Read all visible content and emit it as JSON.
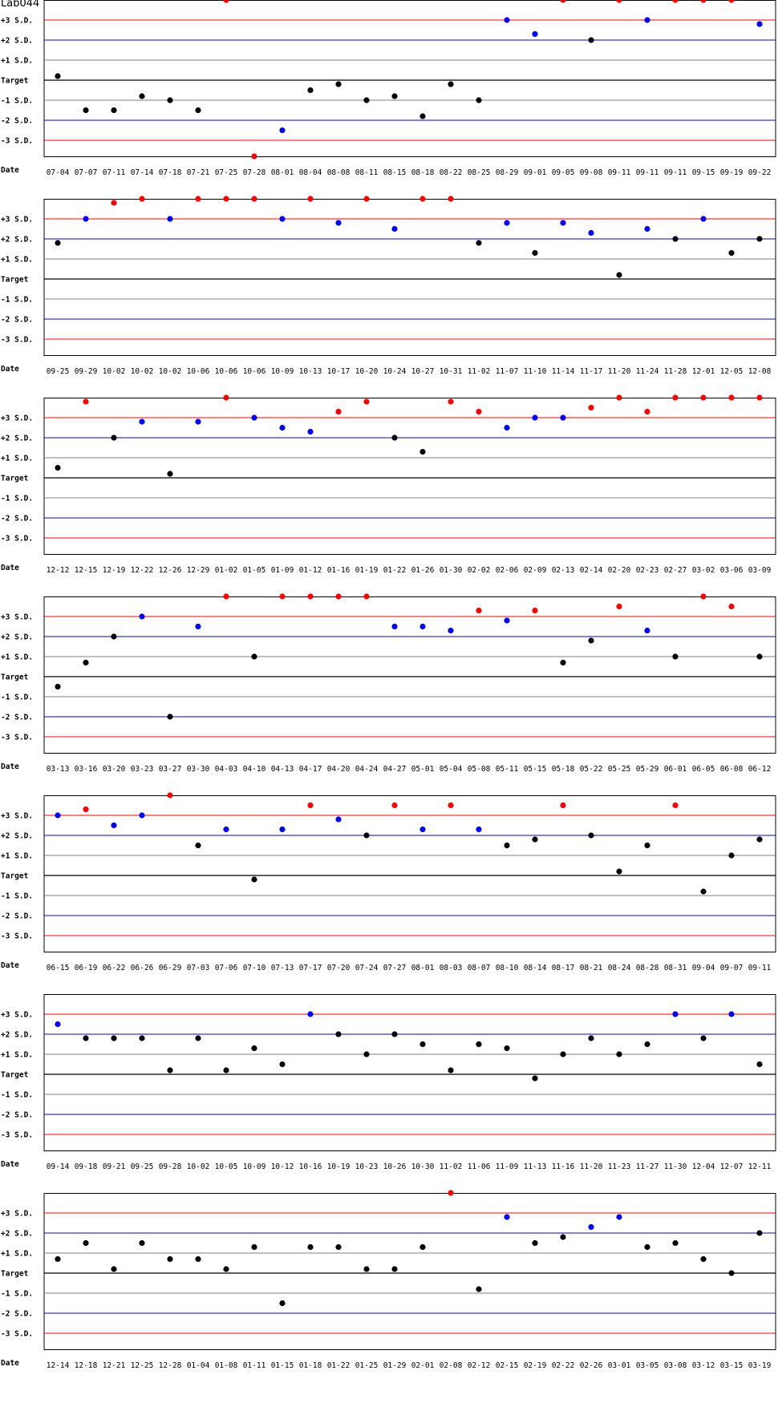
{
  "title": "Lab044",
  "level_labels": [
    "+3 S.D.",
    "+2 S.D.",
    "+1 S.D.",
    "Target",
    "-1 S.D.",
    "-2 S.D.",
    "-3 S.D."
  ],
  "x_axis_label": "Date",
  "colors": {
    "in_control": "#000000",
    "warning": "#0000ff",
    "out_of_control": "#ff0000",
    "target_line": "#000000",
    "sd1_line": "#808080",
    "sd2_line": "#0000ff",
    "sd3_line": "#ff0000"
  },
  "chart_data": [
    {
      "type": "scatter",
      "ylim": [
        -3.6,
        4
      ],
      "grid": true,
      "x": [
        "07-04",
        "07-07",
        "07-11",
        "07-14",
        "07-18",
        "07-21",
        "07-25",
        "07-28",
        "08-01",
        "08-04",
        "08-08",
        "08-11",
        "08-15",
        "08-18",
        "08-22",
        "08-25",
        "08-29",
        "09-01",
        "09-05",
        "09-08",
        "09-11",
        "09-11",
        "09-11",
        "09-15",
        "09-19",
        "09-22"
      ],
      "y": [
        0.2,
        -1.5,
        -1.5,
        -0.8,
        -1.0,
        -1.5,
        4.0,
        -3.8,
        -2.5,
        -0.5,
        -0.2,
        -1.0,
        -0.8,
        -1.8,
        -0.2,
        -1.0,
        3.0,
        2.3,
        4.0,
        2.0,
        4.0,
        3.0,
        4.0,
        4.0,
        4.0,
        2.8
      ]
    },
    {
      "type": "scatter",
      "ylim": [
        -3.6,
        4
      ],
      "grid": true,
      "x": [
        "09-25",
        "09-29",
        "10-02",
        "10-02",
        "10-02",
        "10-06",
        "10-06",
        "10-06",
        "10-09",
        "10-13",
        "10-17",
        "10-20",
        "10-24",
        "10-27",
        "10-31",
        "11-02",
        "11-07",
        "11-10",
        "11-14",
        "11-17",
        "11-20",
        "11-24",
        "11-28",
        "12-01",
        "12-05",
        "12-08"
      ],
      "y": [
        1.8,
        3.0,
        3.8,
        4.0,
        3.0,
        4.0,
        4.0,
        4.0,
        3.0,
        4.0,
        2.8,
        4.0,
        2.5,
        4.0,
        4.0,
        1.8,
        2.8,
        1.3,
        2.8,
        2.3,
        0.2,
        2.5,
        2.0,
        3.0,
        1.3,
        2.0
      ]
    },
    {
      "type": "scatter",
      "ylim": [
        -3.6,
        4
      ],
      "grid": true,
      "x": [
        "12-12",
        "12-15",
        "12-19",
        "12-22",
        "12-26",
        "12-29",
        "01-02",
        "01-05",
        "01-09",
        "01-12",
        "01-16",
        "01-19",
        "01-22",
        "01-26",
        "01-30",
        "02-02",
        "02-06",
        "02-09",
        "02-13",
        "02-14",
        "02-20",
        "02-23",
        "02-27",
        "03-02",
        "03-06",
        "03-09"
      ],
      "y": [
        0.5,
        3.8,
        2.0,
        2.8,
        0.2,
        2.8,
        4.0,
        3.0,
        2.5,
        2.3,
        3.3,
        3.8,
        2.0,
        1.3,
        3.8,
        3.3,
        2.5,
        3.0,
        3.0,
        3.5,
        4.0,
        3.3,
        4.0,
        4.0,
        4.0,
        4.0
      ]
    },
    {
      "type": "scatter",
      "ylim": [
        -3.6,
        4
      ],
      "grid": true,
      "x": [
        "03-13",
        "03-16",
        "03-20",
        "03-23",
        "03-27",
        "03-30",
        "04-03",
        "04-10",
        "04-13",
        "04-17",
        "04-20",
        "04-24",
        "04-27",
        "05-01",
        "05-04",
        "05-08",
        "05-11",
        "05-15",
        "05-18",
        "05-22",
        "05-25",
        "05-29",
        "06-01",
        "06-05",
        "06-08",
        "06-12"
      ],
      "y": [
        -0.5,
        0.7,
        2.0,
        3.0,
        -2.0,
        2.5,
        4.0,
        1.0,
        4.0,
        4.0,
        4.0,
        4.0,
        2.5,
        2.5,
        2.3,
        3.3,
        2.8,
        3.3,
        0.7,
        1.8,
        3.5,
        2.3,
        1.0,
        4.0,
        3.5,
        1.0
      ]
    },
    {
      "type": "scatter",
      "ylim": [
        -3.6,
        4
      ],
      "grid": true,
      "x": [
        "06-15",
        "06-19",
        "06-22",
        "06-26",
        "06-29",
        "07-03",
        "07-06",
        "07-10",
        "07-13",
        "07-17",
        "07-20",
        "07-24",
        "07-27",
        "08-01",
        "08-03",
        "08-07",
        "08-10",
        "08-14",
        "08-17",
        "08-21",
        "08-24",
        "08-28",
        "08-31",
        "09-04",
        "09-07",
        "09-11"
      ],
      "y": [
        3.0,
        3.3,
        2.5,
        3.0,
        4.0,
        1.5,
        2.3,
        -0.2,
        2.3,
        3.5,
        2.8,
        2.0,
        3.5,
        2.3,
        3.5,
        2.3,
        1.5,
        1.8,
        3.5,
        2.0,
        0.2,
        1.5,
        3.5,
        -0.8,
        1.0,
        1.8
      ]
    },
    {
      "type": "scatter",
      "ylim": [
        -3.6,
        4
      ],
      "grid": true,
      "x": [
        "09-14",
        "09-18",
        "09-21",
        "09-25",
        "09-28",
        "10-02",
        "10-05",
        "10-09",
        "10-12",
        "10-16",
        "10-19",
        "10-23",
        "10-26",
        "10-30",
        "11-02",
        "11-06",
        "11-09",
        "11-13",
        "11-16",
        "11-20",
        "11-23",
        "11-27",
        "11-30",
        "12-04",
        "12-07",
        "12-11"
      ],
      "y": [
        2.5,
        1.8,
        1.8,
        1.8,
        0.2,
        1.8,
        0.2,
        1.3,
        0.5,
        3.0,
        2.0,
        1.0,
        2.0,
        1.5,
        0.2,
        1.5,
        1.3,
        -0.2,
        1.0,
        1.8,
        1.0,
        1.5,
        3.0,
        1.8,
        3.0,
        0.5
      ]
    },
    {
      "type": "scatter",
      "ylim": [
        -3.6,
        4
      ],
      "grid": true,
      "x": [
        "12-14",
        "12-18",
        "12-21",
        "12-25",
        "12-28",
        "01-04",
        "01-08",
        "01-11",
        "01-15",
        "01-18",
        "01-22",
        "01-25",
        "01-29",
        "02-01",
        "02-08",
        "02-12",
        "02-15",
        "02-19",
        "02-22",
        "02-26",
        "03-01",
        "03-05",
        "03-08",
        "03-12",
        "03-15",
        "03-19"
      ],
      "y": [
        0.7,
        1.5,
        0.2,
        1.5,
        0.7,
        0.7,
        0.2,
        1.3,
        -1.5,
        1.3,
        1.3,
        0.2,
        0.2,
        1.3,
        4.0,
        -0.8,
        2.8,
        1.5,
        1.8,
        2.3,
        2.8,
        1.3,
        1.5,
        0.7,
        0.0,
        2.0
      ]
    }
  ]
}
